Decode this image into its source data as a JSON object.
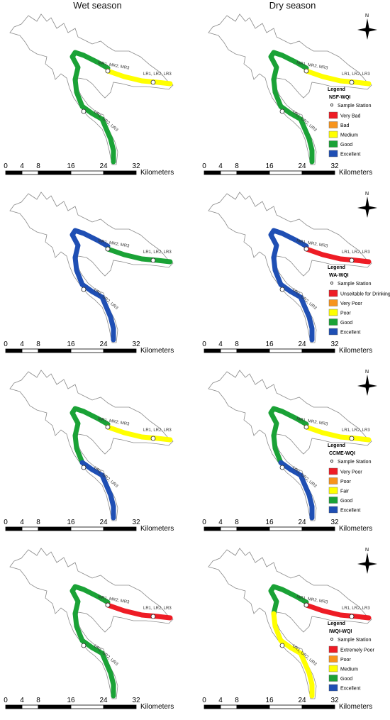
{
  "columns": {
    "wet": "Wet season",
    "dry": "Dry season"
  },
  "scale": {
    "ticks": [
      "0",
      "4",
      "8",
      "16",
      "24",
      "32"
    ],
    "unit": "Kilometers"
  },
  "north": "N",
  "stations": {
    "upper": "MR1, MR2, MR3",
    "right": "LR1, LR2, LR3",
    "lower": "UR1, UR2, UR3"
  },
  "colors": {
    "red": "#ee1c25",
    "orange": "#f7941d",
    "yellow": "#ffff00",
    "green": "#1aa236",
    "blue": "#1f4fb4"
  },
  "panels": [
    {
      "index": "NSF-WQI",
      "legend_title": "Legend",
      "station_label": "Sample Station",
      "classes": [
        {
          "label": "Very Bad",
          "color": "red"
        },
        {
          "label": "Bad",
          "color": "orange"
        },
        {
          "label": "Medium",
          "color": "yellow"
        },
        {
          "label": "Good",
          "color": "green"
        },
        {
          "label": "Excellent",
          "color": "blue"
        }
      ],
      "wet": {
        "upper": "green",
        "right": "yellow",
        "lower": "green",
        "left": "green"
      },
      "dry": {
        "upper": "green",
        "right": "yellow",
        "lower": "green",
        "left": "green"
      }
    },
    {
      "index": "WA-WQI",
      "legend_title": "Legend",
      "station_label": "Sample Station",
      "classes": [
        {
          "label": "Unseitable for Drinking",
          "color": "red"
        },
        {
          "label": "Very Poor",
          "color": "orange"
        },
        {
          "label": "Poor",
          "color": "yellow"
        },
        {
          "label": "Good",
          "color": "green"
        },
        {
          "label": "Excellent",
          "color": "blue"
        }
      ],
      "wet": {
        "upper": "blue",
        "right": "green",
        "lower": "blue",
        "left": "blue"
      },
      "dry": {
        "upper": "blue",
        "right": "red",
        "lower": "blue",
        "left": "blue"
      }
    },
    {
      "index": "CCME-WQI",
      "legend_title": "Legend",
      "station_label": "Sample Station",
      "classes": [
        {
          "label": "Very Poor",
          "color": "red"
        },
        {
          "label": "Poor",
          "color": "orange"
        },
        {
          "label": "Fair",
          "color": "yellow"
        },
        {
          "label": "Good",
          "color": "green"
        },
        {
          "label": "Excellent",
          "color": "blue"
        }
      ],
      "wet": {
        "upper": "green",
        "right": "yellow",
        "lower": "blue",
        "left": "green"
      },
      "dry": {
        "upper": "green",
        "right": "yellow",
        "lower": "blue",
        "left": "green"
      }
    },
    {
      "index": "IWQI-WQI",
      "legend_title": "Legend",
      "station_label": "Sample Station",
      "classes": [
        {
          "label": "Extremely Poor",
          "color": "red"
        },
        {
          "label": "Poor",
          "color": "orange"
        },
        {
          "label": "Medium",
          "color": "yellow"
        },
        {
          "label": "Good",
          "color": "green"
        },
        {
          "label": "Excellent",
          "color": "blue"
        }
      ],
      "wet": {
        "upper": "green",
        "right": "red",
        "lower": "green",
        "left": "green"
      },
      "dry": {
        "upper": "green",
        "right": "red",
        "lower": "yellow",
        "left": "yellow"
      }
    }
  ]
}
